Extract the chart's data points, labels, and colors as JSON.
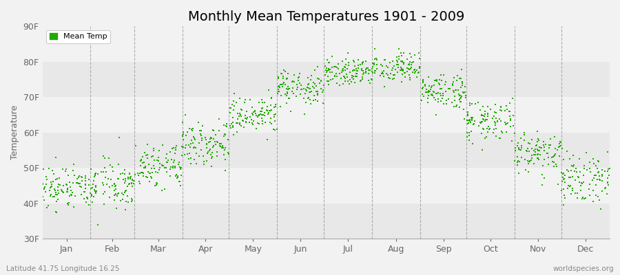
{
  "title": "Monthly Mean Temperatures 1901 - 2009",
  "ylabel": "Temperature",
  "dot_color": "#22aa00",
  "dot_size": 2.5,
  "ylim": [
    30,
    90
  ],
  "yticks": [
    30,
    40,
    50,
    60,
    70,
    80,
    90
  ],
  "ytick_labels": [
    "30F",
    "40F",
    "50F",
    "60F",
    "70F",
    "80F",
    "90F"
  ],
  "months": [
    "Jan",
    "Feb",
    "Mar",
    "Apr",
    "May",
    "Jun",
    "Jul",
    "Aug",
    "Sep",
    "Oct",
    "Nov",
    "Dec"
  ],
  "legend_label": "Mean Temp",
  "bg_color": "#f2f2f2",
  "plot_bg_color": "#f2f2f2",
  "band_color_a": "#f2f2f2",
  "band_color_b": "#e8e8e8",
  "subtitle_left": "Latitude 41.75 Longitude 16.25",
  "subtitle_right": "worldspecies.org",
  "title_fontsize": 14,
  "axis_fontsize": 9,
  "tick_fontsize": 9,
  "monthly_means": [
    44,
    45,
    50,
    57,
    64,
    72,
    77,
    78,
    71,
    63,
    54,
    47
  ],
  "monthly_stds": [
    3.5,
    3.5,
    3.0,
    3.0,
    3.0,
    2.5,
    2.0,
    2.0,
    2.5,
    3.0,
    3.0,
    3.5
  ]
}
